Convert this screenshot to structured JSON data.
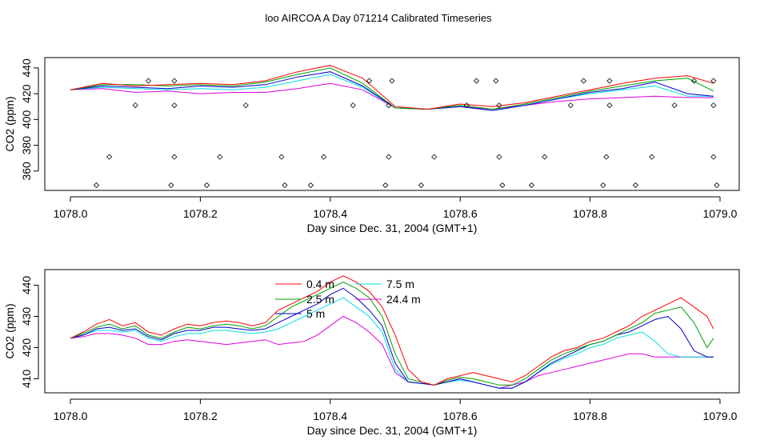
{
  "title": "loo AIRCOA A  Day 071214  Calibrated Timeseries",
  "chart_data": [
    {
      "type": "line",
      "xlabel": "Day since Dec. 31, 2004 (GMT+1)",
      "ylabel": "CO2 (ppm)",
      "xlim": [
        1078.0,
        1079.0
      ],
      "ylim": [
        345,
        448
      ],
      "xticks": [
        "1078.0",
        "1078.2",
        "1078.4",
        "1078.6",
        "1078.8",
        "1079.0"
      ],
      "xtick_values": [
        1078.0,
        1078.2,
        1078.4,
        1078.6,
        1078.8,
        1079.0
      ],
      "yticks": [
        "360",
        "380",
        "400",
        "420",
        "440"
      ],
      "ytick_values": [
        360,
        380,
        400,
        420,
        440
      ],
      "grid": false,
      "x": [
        1078.0,
        1078.05,
        1078.1,
        1078.15,
        1078.2,
        1078.25,
        1078.3,
        1078.35,
        1078.4,
        1078.45,
        1078.5,
        1078.55,
        1078.6,
        1078.65,
        1078.7,
        1078.75,
        1078.8,
        1078.85,
        1078.9,
        1078.95,
        1078.99
      ],
      "series": [
        {
          "name": "0.4 m",
          "color": "#ff0000",
          "values": [
            423,
            428,
            426,
            427,
            428,
            427,
            430,
            437,
            442,
            432,
            410,
            408,
            412,
            410,
            413,
            418,
            423,
            428,
            432,
            434,
            428
          ]
        },
        {
          "name": "2.5 m",
          "color": "#00a000",
          "values": [
            423,
            427,
            427,
            426,
            427,
            426,
            429,
            435,
            440,
            428,
            409,
            408,
            411,
            408,
            412,
            417,
            422,
            426,
            430,
            432,
            422
          ]
        },
        {
          "name": "5 m",
          "color": "#0000cc",
          "values": [
            423,
            426,
            425,
            424,
            426,
            425,
            427,
            433,
            437,
            426,
            409,
            408,
            410,
            407,
            411,
            416,
            421,
            424,
            429,
            420,
            418
          ]
        },
        {
          "name": "7.5 m",
          "color": "#00e0e0",
          "values": [
            423,
            425,
            424,
            423,
            424,
            423,
            425,
            430,
            435,
            425,
            409,
            408,
            410,
            407,
            411,
            416,
            420,
            423,
            426,
            418,
            418
          ]
        },
        {
          "name": "24.4 m",
          "color": "#e000e0",
          "values": [
            423,
            424,
            421,
            422,
            420,
            421,
            421,
            424,
            428,
            423,
            409,
            408,
            410,
            408,
            411,
            414,
            416,
            417,
            418,
            417,
            417
          ]
        }
      ],
      "markers": {
        "symbol": "diamond",
        "points": [
          [
            1078.04,
            349
          ],
          [
            1078.06,
            371
          ],
          [
            1078.1,
            411
          ],
          [
            1078.12,
            430
          ],
          [
            1078.155,
            349
          ],
          [
            1078.16,
            371
          ],
          [
            1078.16,
            411
          ],
          [
            1078.16,
            430
          ],
          [
            1078.21,
            349
          ],
          [
            1078.23,
            371
          ],
          [
            1078.27,
            411
          ],
          [
            1078.325,
            371
          ],
          [
            1078.33,
            349
          ],
          [
            1078.37,
            349
          ],
          [
            1078.39,
            371
          ],
          [
            1078.435,
            411
          ],
          [
            1078.46,
            430
          ],
          [
            1078.485,
            349
          ],
          [
            1078.49,
            371
          ],
          [
            1078.49,
            411
          ],
          [
            1078.495,
            430
          ],
          [
            1078.54,
            349
          ],
          [
            1078.56,
            371
          ],
          [
            1078.61,
            411
          ],
          [
            1078.625,
            430
          ],
          [
            1078.655,
            430
          ],
          [
            1078.66,
            371
          ],
          [
            1078.66,
            411
          ],
          [
            1078.665,
            349
          ],
          [
            1078.71,
            349
          ],
          [
            1078.73,
            371
          ],
          [
            1078.77,
            411
          ],
          [
            1078.79,
            430
          ],
          [
            1078.82,
            349
          ],
          [
            1078.825,
            371
          ],
          [
            1078.83,
            411
          ],
          [
            1078.83,
            430
          ],
          [
            1078.87,
            349
          ],
          [
            1078.895,
            371
          ],
          [
            1078.93,
            411
          ],
          [
            1078.96,
            430
          ],
          [
            1078.99,
            371
          ],
          [
            1078.99,
            411
          ],
          [
            1078.99,
            430
          ],
          [
            1078.995,
            349
          ]
        ]
      }
    },
    {
      "type": "line",
      "xlabel": "Day since Dec. 31, 2004 (GMT+1)",
      "ylabel": "CO2 (ppm)",
      "xlim": [
        1078.0,
        1079.0
      ],
      "ylim": [
        405.5,
        445
      ],
      "xticks": [
        "1078.0",
        "1078.2",
        "1078.4",
        "1078.6",
        "1078.8",
        "1079.0"
      ],
      "xtick_values": [
        1078.0,
        1078.2,
        1078.4,
        1078.6,
        1078.8,
        1079.0
      ],
      "yticks": [
        "410",
        "420",
        "430",
        "440"
      ],
      "ytick_values": [
        410,
        420,
        430,
        440
      ],
      "grid": false,
      "legend_position": "top-center",
      "x": [
        1078.0,
        1078.02,
        1078.04,
        1078.06,
        1078.08,
        1078.1,
        1078.12,
        1078.14,
        1078.16,
        1078.18,
        1078.2,
        1078.22,
        1078.24,
        1078.26,
        1078.28,
        1078.3,
        1078.32,
        1078.34,
        1078.36,
        1078.38,
        1078.4,
        1078.42,
        1078.44,
        1078.46,
        1078.48,
        1078.5,
        1078.52,
        1078.54,
        1078.56,
        1078.58,
        1078.6,
        1078.62,
        1078.64,
        1078.66,
        1078.68,
        1078.7,
        1078.72,
        1078.74,
        1078.76,
        1078.78,
        1078.8,
        1078.82,
        1078.84,
        1078.86,
        1078.88,
        1078.9,
        1078.92,
        1078.94,
        1078.96,
        1078.98,
        1078.99
      ],
      "series": [
        {
          "name": "0.4 m",
          "color": "#ff0000",
          "values": [
            423,
            425,
            427.5,
            429,
            427,
            428,
            425,
            424,
            426,
            427.5,
            427,
            428,
            428.5,
            428,
            427,
            428,
            432,
            434,
            436,
            438,
            441,
            443,
            441,
            438,
            433,
            424,
            413,
            409,
            408,
            410,
            411,
            412,
            411,
            410,
            409,
            411,
            414,
            417,
            419,
            420,
            422,
            423,
            425,
            427,
            430,
            432,
            434,
            436,
            433,
            430,
            426
          ]
        },
        {
          "name": "2.5 m",
          "color": "#00a000",
          "values": [
            423,
            424.5,
            426.5,
            427.5,
            426,
            427,
            424,
            423,
            425,
            426.5,
            426,
            427,
            427.5,
            427,
            426,
            427,
            430,
            433,
            435,
            437,
            439,
            441,
            439,
            436,
            430,
            418,
            410,
            409,
            408,
            409.5,
            410.5,
            410,
            409,
            408,
            408,
            410,
            413,
            416,
            418,
            419.5,
            421,
            422,
            424,
            426,
            428,
            431,
            432,
            433,
            428,
            420,
            423
          ]
        },
        {
          "name": "5 m",
          "color": "#0000cc",
          "values": [
            423,
            424,
            426,
            426.5,
            425.5,
            426,
            423.5,
            422.5,
            424.5,
            425.5,
            425.5,
            426.5,
            426.5,
            426,
            425.5,
            426,
            428,
            430,
            432,
            434,
            437,
            439,
            436,
            432,
            427,
            415,
            409,
            408.5,
            408,
            409,
            410,
            409,
            408,
            407,
            407,
            409,
            412,
            415,
            417,
            419,
            421,
            422,
            424,
            425,
            427,
            429,
            430,
            426,
            419,
            417,
            417
          ]
        },
        {
          "name": "7.5 m",
          "color": "#00e0e0",
          "values": [
            423,
            424,
            425.5,
            425.5,
            425,
            425.5,
            423,
            422,
            423.5,
            424.5,
            424.5,
            425.5,
            425.5,
            425,
            424.5,
            425,
            426,
            428,
            430,
            432,
            434,
            436,
            433,
            430,
            425,
            413,
            409,
            408.5,
            408,
            409,
            409.5,
            409,
            408,
            407,
            407,
            409,
            412,
            414.5,
            416.5,
            418,
            420,
            421,
            423,
            424,
            425,
            422,
            418,
            417,
            417,
            417,
            417
          ]
        },
        {
          "name": "24.4 m",
          "color": "#e000e0",
          "values": [
            423,
            423.5,
            424.5,
            424.5,
            424,
            423,
            421,
            421,
            422,
            422.5,
            422,
            421.5,
            421,
            421.5,
            422,
            422.5,
            421,
            421.5,
            422,
            424,
            427,
            430,
            428,
            425,
            421,
            412,
            409,
            408.5,
            408,
            409,
            410,
            409,
            408,
            407,
            408,
            409,
            411,
            412,
            413,
            414,
            415,
            416,
            417,
            418,
            418,
            417,
            417,
            417,
            417,
            417,
            417
          ]
        }
      ]
    }
  ]
}
